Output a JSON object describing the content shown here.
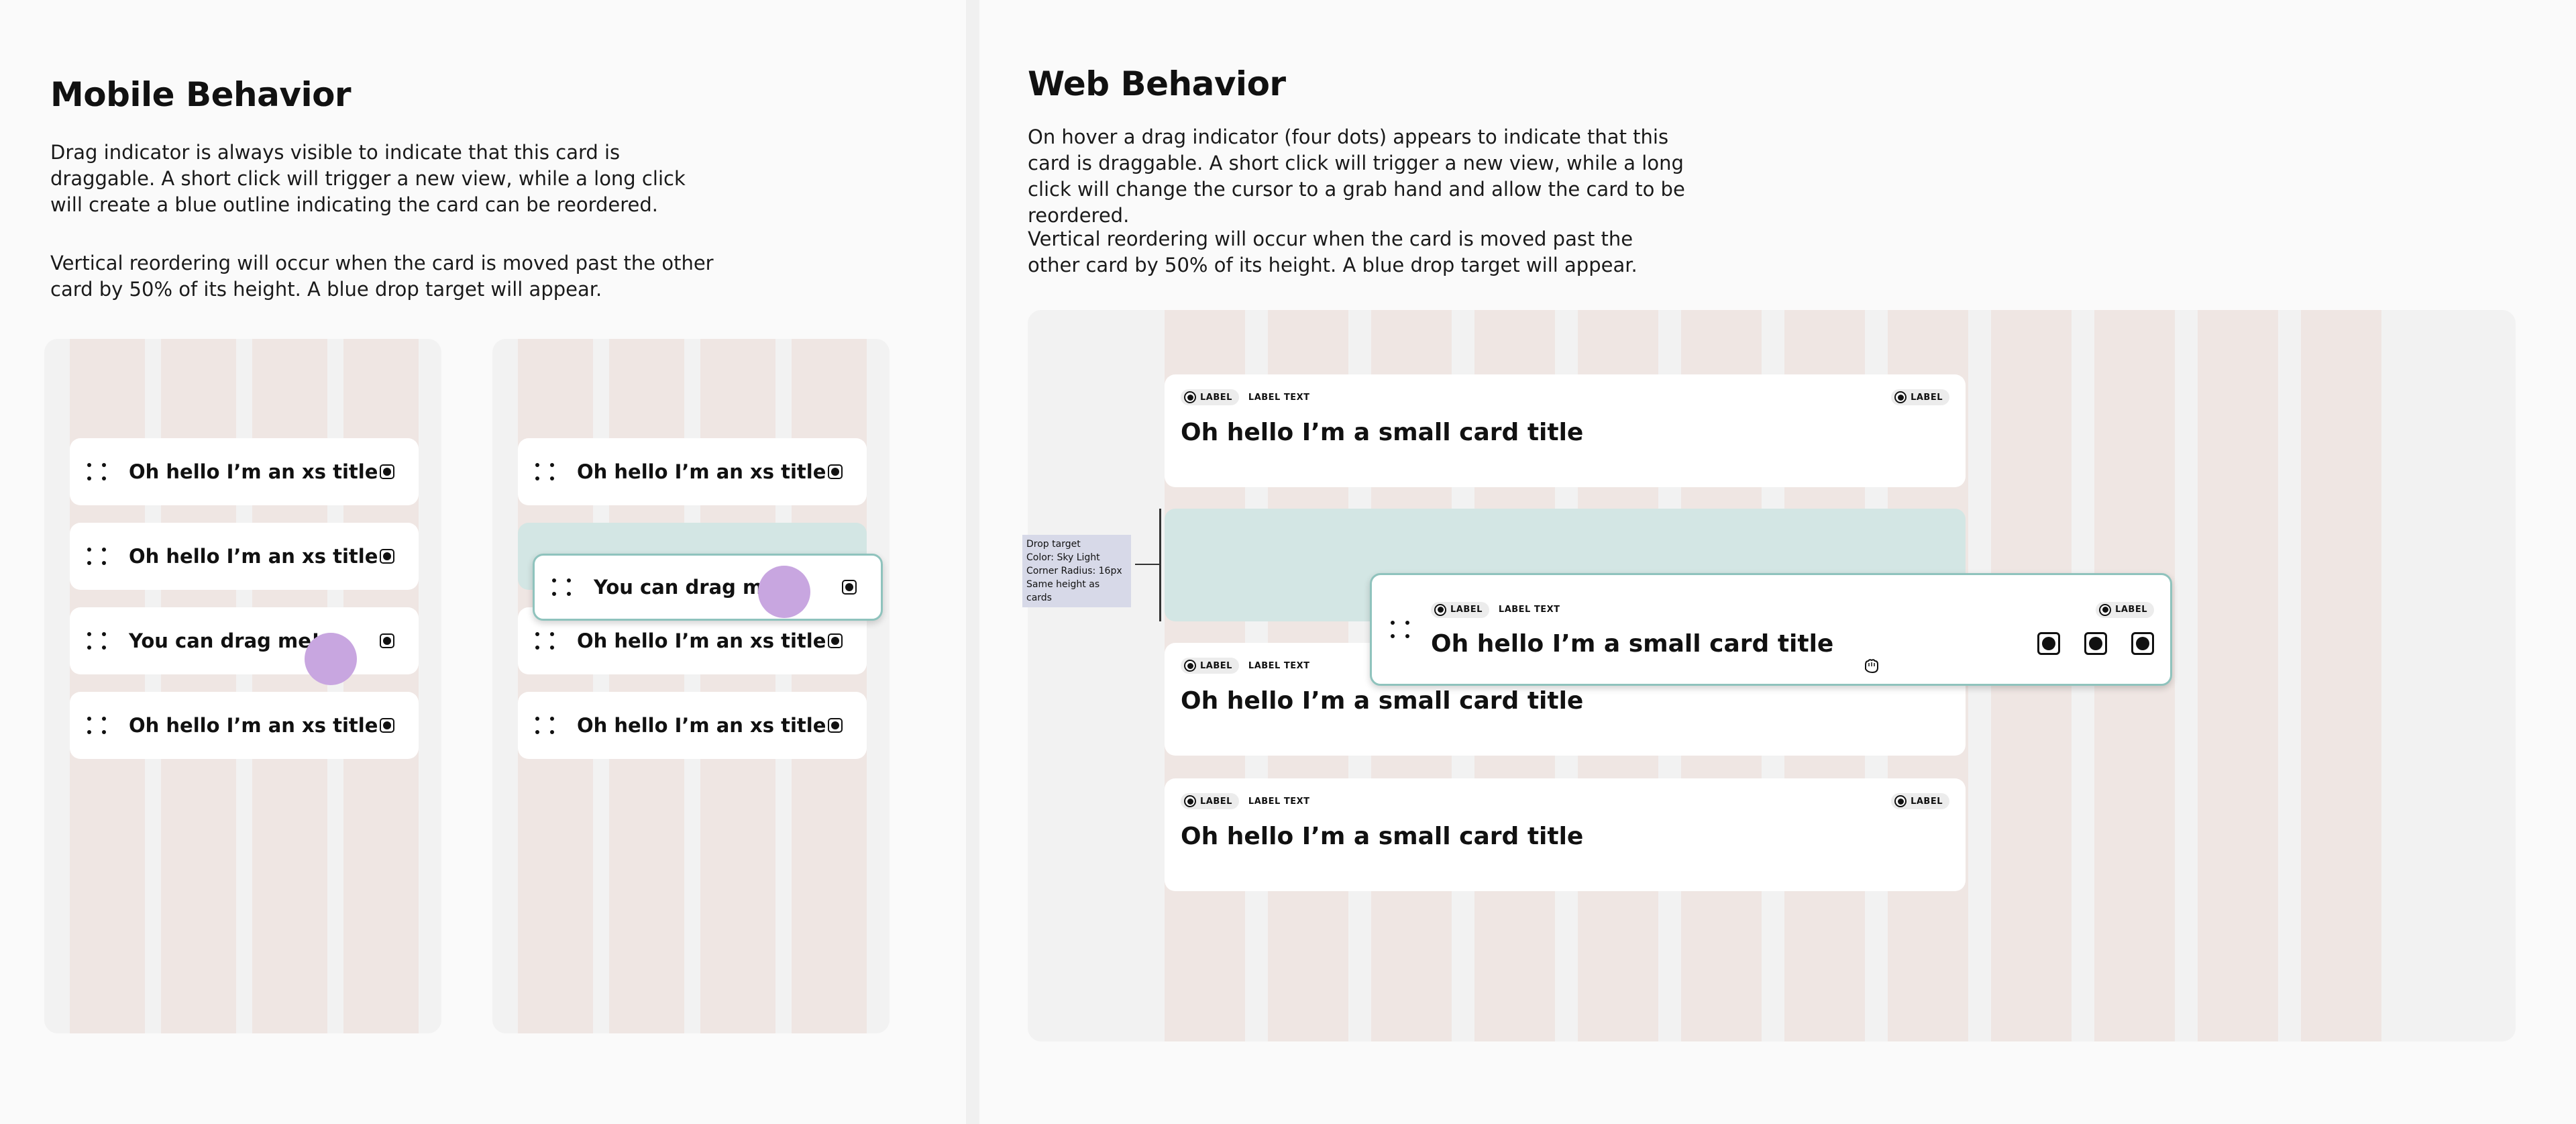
{
  "mobile": {
    "heading": "Mobile Behavior",
    "paragraph1": "Drag indicator is always visible to indicate that this card is draggable. A short click will trigger a new view, while a long click will create a blue outline indicating the card can be reordered.",
    "paragraph2": "Vertical reordering will occur when the card is moved past the other card by 50% of its height. A blue drop target will appear.",
    "frame1_cards": [
      "Oh hello I’m an xs title",
      "Oh hello I’m an xs title",
      "You can drag me!",
      "Oh hello I’m an xs title"
    ],
    "frame2_dragged_card": "You can drag me!",
    "frame2_cards": [
      "Oh hello I’m an xs title",
      "Oh hello I’m an xs title",
      "Oh hello I’m an xs title"
    ]
  },
  "web": {
    "heading": "Web Behavior",
    "paragraph1": "On hover a drag indicator (four dots) appears to indicate that this card is draggable. A short click will trigger a new view, while a long click will change the cursor to a grab hand and allow the card to be reordered.",
    "paragraph2": "Vertical reordering will occur when the card is moved past the other card by 50% of its height. A blue drop target will appear.",
    "chip_label": "LABEL",
    "label_text": "LABEL TEXT",
    "card_title": "Oh hello I’m a small card title",
    "annotation": {
      "line1": "Drop target",
      "line2": "Color: Sky Light",
      "line3": "Corner Radius: 16px",
      "line4": "Same height as cards"
    }
  },
  "colors": {
    "column_pink": "#efe6e3",
    "drop_target": "#d3e6e4",
    "touch_point": "#c8a6e0",
    "drag_outline": "#8fc3bd"
  },
  "icons": [
    "drag-handle-icon",
    "radio-icon",
    "grab-hand-cursor-icon"
  ]
}
